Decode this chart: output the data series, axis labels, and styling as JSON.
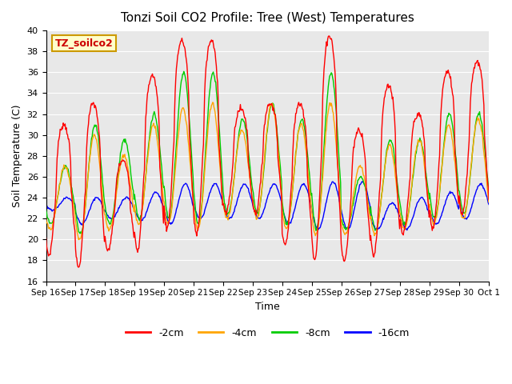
{
  "title": "Tonzi Soil CO2 Profile: Tree (West) Temperatures",
  "xlabel": "Time",
  "ylabel": "Soil Temperature (C)",
  "ylim": [
    16,
    40
  ],
  "yticks": [
    16,
    18,
    20,
    22,
    24,
    26,
    28,
    30,
    32,
    34,
    36,
    38,
    40
  ],
  "xtick_labels": [
    "Sep 16",
    "Sep 17",
    "Sep 18",
    "Sep 19",
    "Sep 20",
    "Sep 21",
    "Sep 22",
    "Sep 23",
    "Sep 24",
    "Sep 25",
    "Sep 26",
    "Sep 27",
    "Sep 28",
    "Sep 29",
    "Sep 30",
    "Oct 1"
  ],
  "colors": {
    "neg2cm": "#ff0000",
    "neg4cm": "#ffa500",
    "neg8cm": "#00cc00",
    "neg16cm": "#0000ff"
  },
  "legend_box_label": "TZ_soilco2",
  "legend_box_color": "#ffffcc",
  "legend_box_border": "#cc9900",
  "background_color": "#e8e8e8",
  "fig_background": "#ffffff",
  "n_days": 15,
  "pts_per_day": 48
}
